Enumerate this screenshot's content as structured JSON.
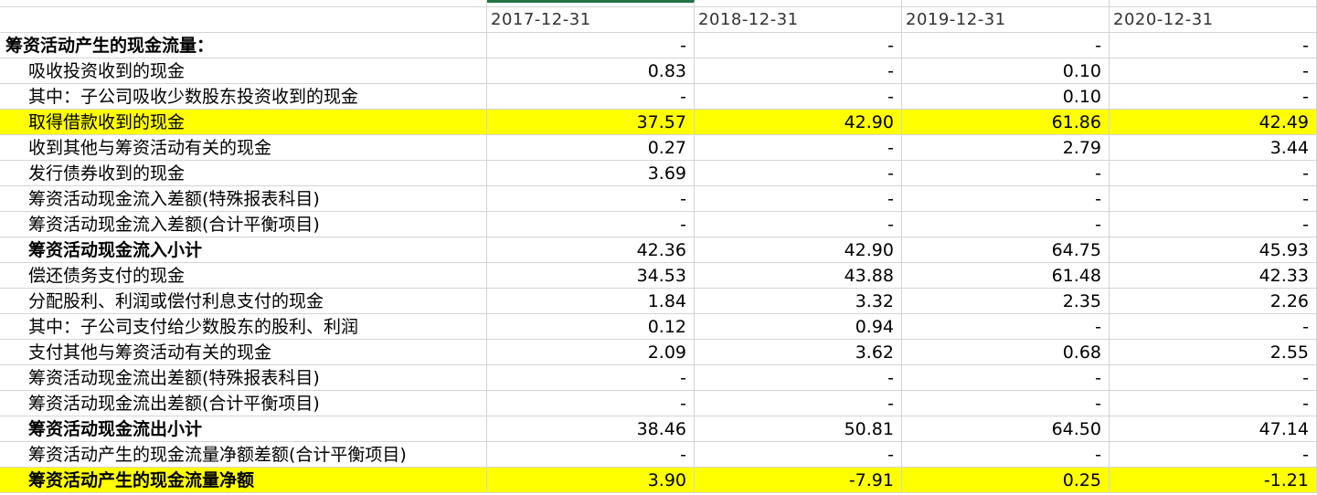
{
  "header": {
    "dates": [
      "2017-12-31",
      "2018-12-31",
      "2019-12-31",
      "2020-12-31"
    ]
  },
  "rows": [
    {
      "label": "筹资活动产生的现金流量：",
      "values": [
        "-",
        "-",
        "-",
        "-"
      ],
      "bold": true,
      "indent": false,
      "highlight": false
    },
    {
      "label": "吸收投资收到的现金",
      "values": [
        "0.83",
        "-",
        "0.10",
        "-"
      ],
      "bold": false,
      "indent": true,
      "highlight": false
    },
    {
      "label": "其中：子公司吸收少数股东投资收到的现金",
      "values": [
        "-",
        "-",
        "0.10",
        "-"
      ],
      "bold": false,
      "indent": true,
      "highlight": false
    },
    {
      "label": "取得借款收到的现金",
      "values": [
        "37.57",
        "42.90",
        "61.86",
        "42.49"
      ],
      "bold": false,
      "indent": true,
      "highlight": true
    },
    {
      "label": "收到其他与筹资活动有关的现金",
      "values": [
        "0.27",
        "-",
        "2.79",
        "3.44"
      ],
      "bold": false,
      "indent": true,
      "highlight": false
    },
    {
      "label": "发行债券收到的现金",
      "values": [
        "3.69",
        "-",
        "-",
        "-"
      ],
      "bold": false,
      "indent": true,
      "highlight": false
    },
    {
      "label": "筹资活动现金流入差额(特殊报表科目)",
      "values": [
        "-",
        "-",
        "-",
        "-"
      ],
      "bold": false,
      "indent": true,
      "highlight": false
    },
    {
      "label": "筹资活动现金流入差额(合计平衡项目)",
      "values": [
        "-",
        "-",
        "-",
        "-"
      ],
      "bold": false,
      "indent": true,
      "highlight": false
    },
    {
      "label": "筹资活动现金流入小计",
      "values": [
        "42.36",
        "42.90",
        "64.75",
        "45.93"
      ],
      "bold": true,
      "indent": true,
      "highlight": false
    },
    {
      "label": "偿还债务支付的现金",
      "values": [
        "34.53",
        "43.88",
        "61.48",
        "42.33"
      ],
      "bold": false,
      "indent": true,
      "highlight": false
    },
    {
      "label": "分配股利、利润或偿付利息支付的现金",
      "values": [
        "1.84",
        "3.32",
        "2.35",
        "2.26"
      ],
      "bold": false,
      "indent": true,
      "highlight": false
    },
    {
      "label": "其中：子公司支付给少数股东的股利、利润",
      "values": [
        "0.12",
        "0.94",
        "-",
        "-"
      ],
      "bold": false,
      "indent": true,
      "highlight": false
    },
    {
      "label": "支付其他与筹资活动有关的现金",
      "values": [
        "2.09",
        "3.62",
        "0.68",
        "2.55"
      ],
      "bold": false,
      "indent": true,
      "highlight": false
    },
    {
      "label": "筹资活动现金流出差额(特殊报表科目)",
      "values": [
        "-",
        "-",
        "-",
        "-"
      ],
      "bold": false,
      "indent": true,
      "highlight": false
    },
    {
      "label": "筹资活动现金流出差额(合计平衡项目)",
      "values": [
        "-",
        "-",
        "-",
        "-"
      ],
      "bold": false,
      "indent": true,
      "highlight": false
    },
    {
      "label": "筹资活动现金流出小计",
      "values": [
        "38.46",
        "50.81",
        "64.50",
        "47.14"
      ],
      "bold": true,
      "indent": true,
      "highlight": false
    },
    {
      "label": "筹资活动产生的现金流量净额差额(合计平衡项目)",
      "values": [
        "-",
        "-",
        "-",
        "-"
      ],
      "bold": false,
      "indent": true,
      "highlight": false
    },
    {
      "label": "筹资活动产生的现金流量净额",
      "values": [
        "3.90",
        "-7.91",
        "0.25",
        "-1.21"
      ],
      "bold": true,
      "indent": true,
      "highlight": true
    }
  ],
  "colors": {
    "highlight": "#ffff00",
    "gridline": "#d4d4d4",
    "selection": "#217346"
  }
}
